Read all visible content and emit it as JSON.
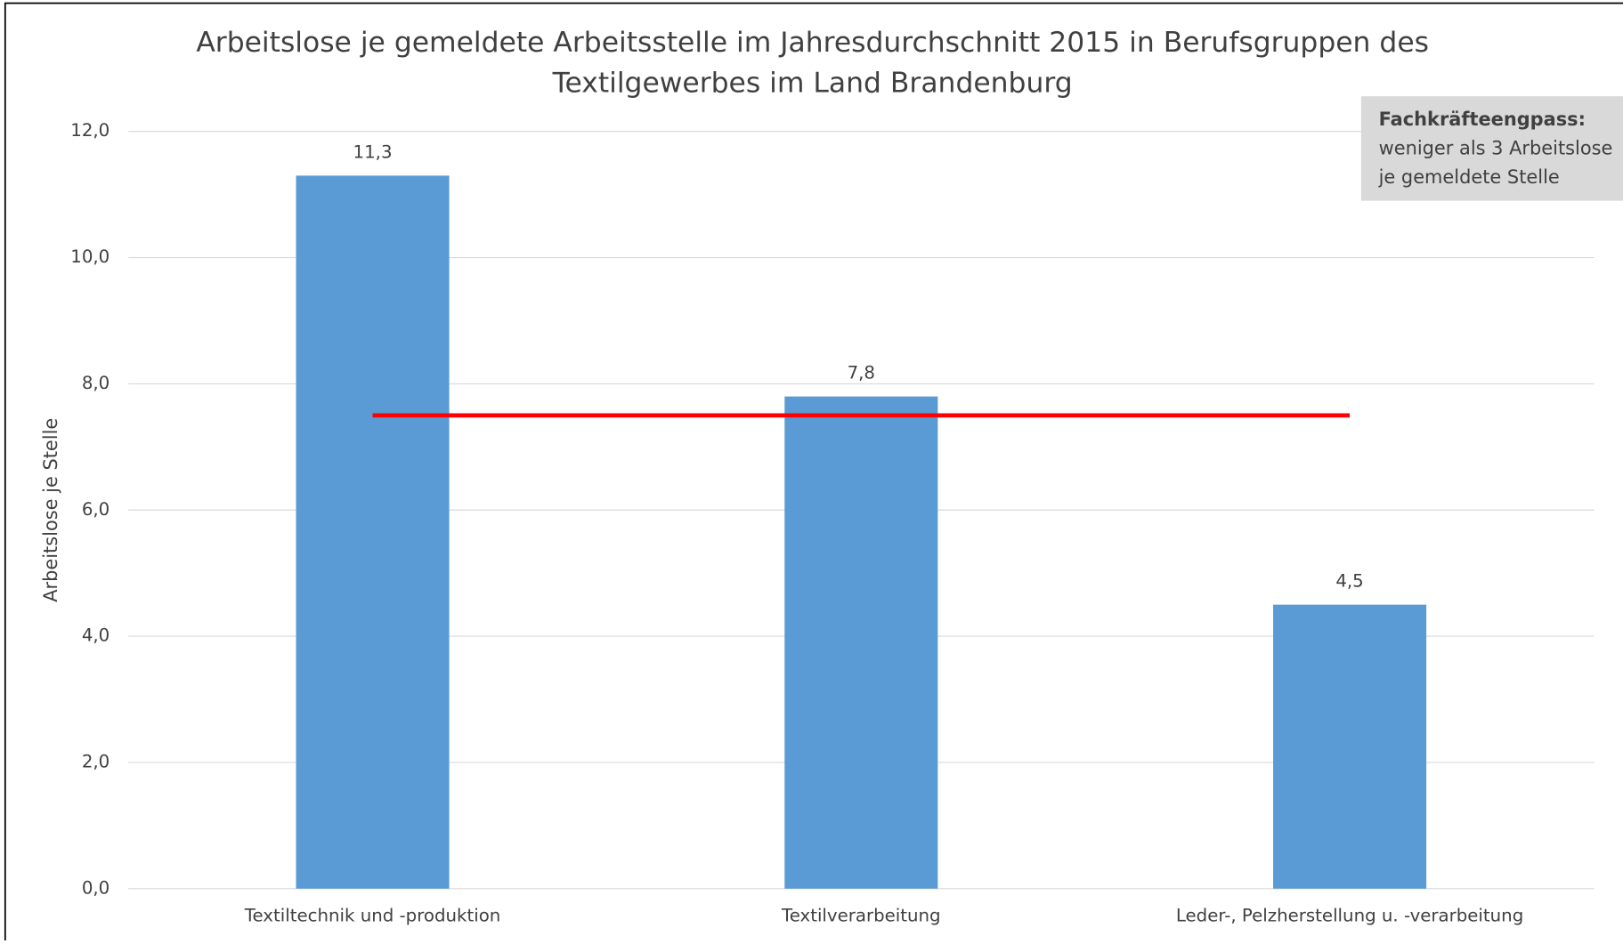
{
  "chart_data": {
    "type": "bar",
    "title": [
      "Arbeitslose je gemeldete Arbeitsstelle im Jahresdurchschnitt 2015 in Berufsgruppen des",
      "Textilgewerbes im Land Brandenburg"
    ],
    "y_label": "Arbeitslose je Stelle",
    "categories": [
      "Textiltechnik und -produktion",
      "Textilverarbeitung",
      "Leder-, Pelzherstellung u. -verarbeitung"
    ],
    "values": [
      11.3,
      7.8,
      4.5
    ],
    "value_labels": [
      "11,3",
      "7,8",
      "4,5"
    ],
    "color": "#5b9bd5",
    "ylim": [
      0,
      12
    ],
    "yticks": [
      {
        "value": 0,
        "label": "0,0"
      },
      {
        "value": 2,
        "label": "2,0"
      },
      {
        "value": 4,
        "label": "4,0"
      },
      {
        "value": 6,
        "label": "6,0"
      },
      {
        "value": 8,
        "label": "8,0"
      },
      {
        "value": 10,
        "label": "10,0"
      },
      {
        "value": 12,
        "label": "12,0"
      }
    ],
    "grid": true,
    "reference_line": {
      "value": 7.5,
      "color": "#ff0000"
    },
    "annotation": {
      "title": "Fachkräfteengpass:",
      "lines": [
        "weniger als 3 Arbeitslose",
        "je gemeldete Stelle"
      ]
    }
  }
}
